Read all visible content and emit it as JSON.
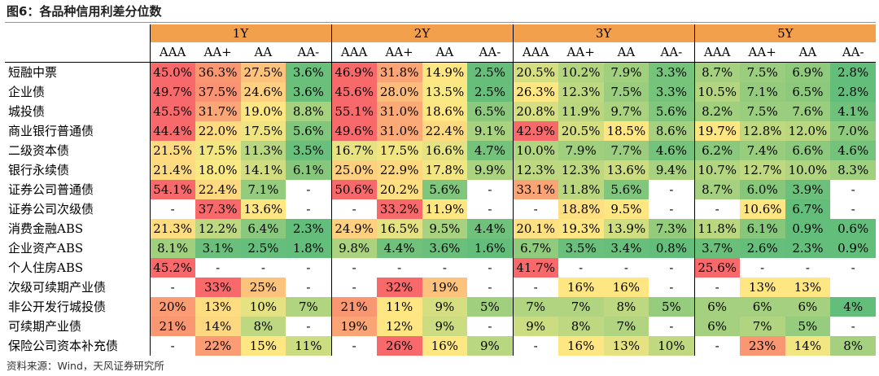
{
  "title": "图6：各品种信用利差分位数",
  "source": "资料来源：Wind，天风证券研究所",
  "tenors": [
    "1Y",
    "2Y",
    "3Y",
    "5Y"
  ],
  "ratings": [
    "AAA",
    "AA+",
    "AA",
    "AA-"
  ],
  "rows": [
    {
      "label": "短融中票",
      "values": [
        "45.0%",
        "36.3%",
        "27.5%",
        "3.6%",
        "46.9%",
        "31.8%",
        "14.9%",
        "2.5%",
        "20.5%",
        "10.2%",
        "7.9%",
        "3.3%",
        "8.7%",
        "7.5%",
        "6.9%",
        "2.8%"
      ],
      "colors": [
        "#f8696b",
        "#fa9773",
        "#fdc37c",
        "#6abf7b",
        "#f8696b",
        "#fba577",
        "#fee683",
        "#67be7b",
        "#d5de81",
        "#b4d580",
        "#a0cf7e",
        "#76c37c",
        "#a4d07f",
        "#9acd7e",
        "#90ca7d",
        "#63be7b"
      ]
    },
    {
      "label": "企业债",
      "values": [
        "49.7%",
        "37.5%",
        "24.6%",
        "3.6%",
        "45.6%",
        "28.0%",
        "13.5%",
        "2.5%",
        "26.3%",
        "12.3%",
        "7.5%",
        "3.3%",
        "10.5%",
        "7.1%",
        "6.5%",
        "2.8%"
      ],
      "colors": [
        "#f8696b",
        "#fa9373",
        "#fed07f",
        "#6abf7b",
        "#f8696b",
        "#fcbc7b",
        "#f8e984",
        "#67be7b",
        "#fee683",
        "#bdd880",
        "#9acd7e",
        "#76c37c",
        "#b4d580",
        "#94cb7d",
        "#8cc97d",
        "#63be7b"
      ]
    },
    {
      "label": "城投债",
      "values": [
        "45.5%",
        "31.7%",
        "19.0%",
        "8.8%",
        "55.1%",
        "31.0%",
        "18.6%",
        "6.5%",
        "20.8%",
        "11.9%",
        "9.7%",
        "5.6%",
        "8.2%",
        "7.5%",
        "7.6%",
        "4.1%"
      ],
      "colors": [
        "#f8696b",
        "#fba677",
        "#fee683",
        "#a6d17f",
        "#f8696b",
        "#fbaa77",
        "#fee683",
        "#8cc97d",
        "#d5de81",
        "#bad780",
        "#abd27f",
        "#80c67c",
        "#a0cf7e",
        "#9acd7e",
        "#9bcd7e",
        "#70c17b"
      ]
    },
    {
      "label": "商业银行普通债",
      "values": [
        "44.4%",
        "22.0%",
        "17.5%",
        "5.6%",
        "49.6%",
        "31.0%",
        "22.4%",
        "9.1%",
        "42.9%",
        "20.5%",
        "18.5%",
        "8.6%",
        "19.7%",
        "12.8%",
        "12.0%",
        "7.0%"
      ],
      "colors": [
        "#f8696b",
        "#feda81",
        "#eee582",
        "#80c67c",
        "#f8696b",
        "#fbaa77",
        "#fed980",
        "#a8d27f",
        "#f8696b",
        "#d5de81",
        "#fee683",
        "#a4d07f",
        "#fee683",
        "#c0d981",
        "#bad780",
        "#8fca7d"
      ]
    },
    {
      "label": "二级资本债",
      "values": [
        "21.5%",
        "17.5%",
        "11.3%",
        "3.5%",
        "16.7%",
        "17.5%",
        "16.6%",
        "4.7%",
        "10.0%",
        "7.9%",
        "7.7%",
        "4.6%",
        "6.2%",
        "7.4%",
        "6.6%",
        "4.6%"
      ],
      "colors": [
        "#feda81",
        "#f2e683",
        "#b8d780",
        "#69bf7b",
        "#e7e382",
        "#f2e683",
        "#e4e282",
        "#74c27b",
        "#b0d480",
        "#a0cf7e",
        "#9ccd7e",
        "#74c27b",
        "#89c87d",
        "#99cd7e",
        "#8cc97d",
        "#74c27b"
      ]
    },
    {
      "label": "银行永续债",
      "values": [
        "21.4%",
        "18.0%",
        "14.1%",
        "6.1%",
        "25.0%",
        "22.9%",
        "17.8%",
        "9.9%",
        "12.3%",
        "12.3%",
        "13.6%",
        "9.4%",
        "10.7%",
        "12.7%",
        "10.0%",
        "8.3%"
      ],
      "colors": [
        "#feda81",
        "#f8e984",
        "#d2dd81",
        "#86c77c",
        "#fed07f",
        "#fed880",
        "#f2e683",
        "#aad27f",
        "#bdd880",
        "#bdd880",
        "#cbdc81",
        "#a8d27f",
        "#b4d580",
        "#c0d981",
        "#b0d480",
        "#a0cf7e"
      ]
    },
    {
      "label": "证券公司普通债",
      "values": [
        "54.1%",
        "22.4%",
        "7.1%",
        "-",
        "50.6%",
        "20.2%",
        "5.6%",
        "-",
        "33.1%",
        "11.8%",
        "5.6%",
        "-",
        "8.7%",
        "6.0%",
        "3.9%",
        "-"
      ],
      "colors": [
        "#f8696b",
        "#fed980",
        "#94cb7d",
        "#ffffff",
        "#f8696b",
        "#fedf82",
        "#80c67c",
        "#ffffff",
        "#fba577",
        "#bad780",
        "#80c67c",
        "#ffffff",
        "#a4d07f",
        "#86c77c",
        "#6dc07b",
        "#ffffff"
      ]
    },
    {
      "label": "证券公司次级债",
      "values": [
        "-",
        "37.3%",
        "13.6%",
        "-",
        "-",
        "33.2%",
        "11.9%",
        "-",
        "-",
        "18.8%",
        "9.5%",
        "-",
        "-",
        "10.6%",
        "6.7%",
        "-"
      ],
      "colors": [
        "#ffffff",
        "#f8696b",
        "#fee683",
        "#ffffff",
        "#ffffff",
        "#f8696b",
        "#fee683",
        "#ffffff",
        "#ffffff",
        "#fedf82",
        "#fee683",
        "#ffffff",
        "#ffffff",
        "#fee683",
        "#63be7b",
        "#ffffff"
      ]
    },
    {
      "label": "消费金融ABS",
      "values": [
        "21.3%",
        "12.2%",
        "6.4%",
        "2.3%",
        "24.9%",
        "16.5%",
        "9.5%",
        "4.4%",
        "20.1%",
        "19.3%",
        "13.9%",
        "7.3%",
        "11.8%",
        "6.1%",
        "0.9%",
        "0.6%"
      ],
      "colors": [
        "#fedd81",
        "#bdd880",
        "#8ac87d",
        "#63be7b",
        "#fed07f",
        "#e4e282",
        "#a8d27f",
        "#70c17b",
        "#fedf82",
        "#fee683",
        "#cede81",
        "#94cb7d",
        "#bad780",
        "#86c77c",
        "#63be7b",
        "#63be7b"
      ]
    },
    {
      "label": "企业资产ABS",
      "values": [
        "8.1%",
        "3.1%",
        "2.5%",
        "1.8%",
        "9.8%",
        "4.4%",
        "3.6%",
        "1.6%",
        "6.7%",
        "3.5%",
        "3.4%",
        "0.8%",
        "3.7%",
        "2.6%",
        "2.3%",
        "0.9%"
      ],
      "colors": [
        "#a0cf7e",
        "#69bf7b",
        "#65be7b",
        "#63be7b",
        "#aad27f",
        "#70c17b",
        "#6abf7b",
        "#63be7b",
        "#90ca7d",
        "#69bf7b",
        "#68bf7b",
        "#63be7b",
        "#6abf7b",
        "#65be7b",
        "#63be7b",
        "#63be7b"
      ]
    },
    {
      "label": "个人住房ABS",
      "values": [
        "45.2%",
        "-",
        "-",
        "-",
        "-",
        "-",
        "-",
        "-",
        "41.7%",
        "-",
        "-",
        "-",
        "25.6%",
        "-",
        "-",
        "-"
      ],
      "colors": [
        "#f8696b",
        "#ffffff",
        "#ffffff",
        "#ffffff",
        "#ffffff",
        "#ffffff",
        "#ffffff",
        "#ffffff",
        "#f8696b",
        "#ffffff",
        "#ffffff",
        "#ffffff",
        "#f8696b",
        "#ffffff",
        "#ffffff",
        "#ffffff"
      ]
    },
    {
      "label": "次级可续期产业债",
      "values": [
        "-",
        "33%",
        "25%",
        "-",
        "-",
        "32%",
        "19%",
        "-",
        "-",
        "16%",
        "16%",
        "-",
        "-",
        "13%",
        "13%",
        ""
      ],
      "colors": [
        "#ffffff",
        "#f8696b",
        "#fdc37c",
        "#ffffff",
        "#ffffff",
        "#f8696b",
        "#fdc37c",
        "#ffffff",
        "#ffffff",
        "#fee683",
        "#fee683",
        "#ffffff",
        "#ffffff",
        "#fee683",
        "#fee683",
        "#ffffff"
      ]
    },
    {
      "label": "非公开发行城投债",
      "values": [
        "20%",
        "13%",
        "10%",
        "7%",
        "21%",
        "11%",
        "9%",
        "5%",
        "7%",
        "7%",
        "8%",
        "5%",
        "6%",
        "6%",
        "6%",
        "4%"
      ],
      "colors": [
        "#fb9c75",
        "#fedd81",
        "#e4e282",
        "#b0d480",
        "#fa9773",
        "#fee683",
        "#d5de81",
        "#a0cf7e",
        "#b0d480",
        "#b0d480",
        "#bdd880",
        "#96cc7e",
        "#a4d07f",
        "#a4d07f",
        "#a4d07f",
        "#63be7b"
      ]
    },
    {
      "label": "可续期产业债",
      "values": [
        "21%",
        "14%",
        "8%",
        "-",
        "19%",
        "12%",
        "9%",
        "-",
        "9%",
        "8%",
        "7%",
        "-",
        "6%",
        "7%",
        "5%",
        "-"
      ],
      "colors": [
        "#fa9773",
        "#fed880",
        "#bdd880",
        "#ffffff",
        "#fba577",
        "#fee683",
        "#cbdc81",
        "#ffffff",
        "#cbdc81",
        "#bdd880",
        "#b0d480",
        "#ffffff",
        "#a4d07f",
        "#b0d480",
        "#96cc7e",
        "#ffffff"
      ]
    },
    {
      "label": "保险公司资本补充债",
      "values": [
        "-",
        "22%",
        "15%",
        "11%",
        "-",
        "26%",
        "16%",
        "9%",
        "-",
        "16%",
        "13%",
        "10%",
        "-",
        "23%",
        "14%",
        "8%"
      ],
      "colors": [
        "#ffffff",
        "#fb9c75",
        "#fee683",
        "#cbdc81",
        "#ffffff",
        "#f8696b",
        "#fee683",
        "#b8d780",
        "#ffffff",
        "#fee683",
        "#e4e282",
        "#c0d981",
        "#ffffff",
        "#fa9773",
        "#f2e683",
        "#a4d07f"
      ]
    }
  ]
}
